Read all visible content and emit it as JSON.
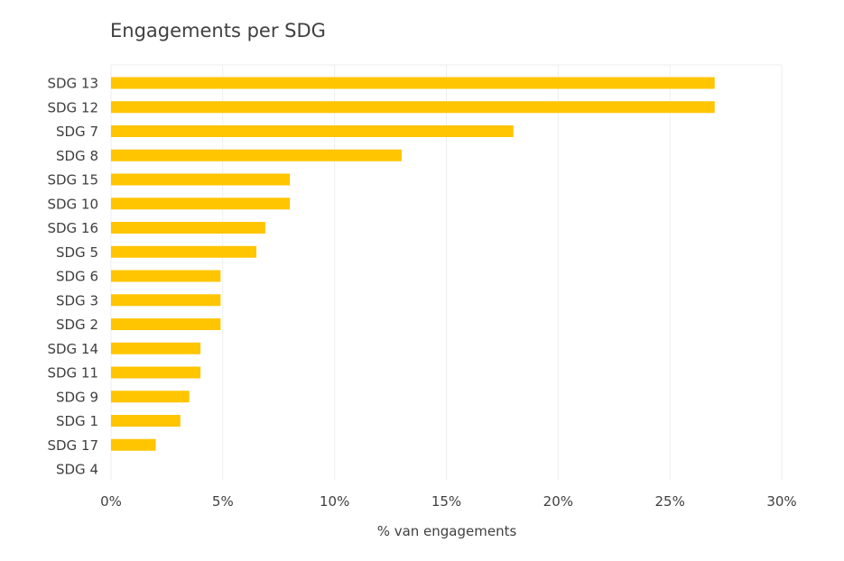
{
  "chart_data": {
    "type": "bar",
    "orientation": "horizontal",
    "title": "Engagements per SDG",
    "xlabel": "% van engagements",
    "ylabel": "",
    "categories": [
      "SDG 13",
      "SDG 12",
      "SDG 7",
      "SDG 8",
      "SDG 15",
      "SDG 10",
      "SDG 16",
      "SDG 5",
      "SDG 6",
      "SDG 3",
      "SDG 2",
      "SDG 14",
      "SDG 11",
      "SDG 9",
      "SDG 1",
      "SDG 17",
      "SDG 4"
    ],
    "values": [
      27,
      27,
      18,
      13,
      8,
      8,
      6.9,
      6.5,
      4.9,
      4.9,
      4.9,
      4,
      4,
      3.5,
      3.1,
      2,
      0
    ],
    "xlim": [
      0,
      30
    ],
    "xticks": [
      0,
      5,
      10,
      15,
      20,
      25,
      30
    ],
    "xtick_labels": [
      "0%",
      "5%",
      "10%",
      "15%",
      "20%",
      "25%",
      "30%"
    ],
    "grid": "vertical",
    "legend": "none",
    "colors": {
      "bar": "#FFC500",
      "grid": "#EEEEEE",
      "text": "#404040"
    }
  }
}
